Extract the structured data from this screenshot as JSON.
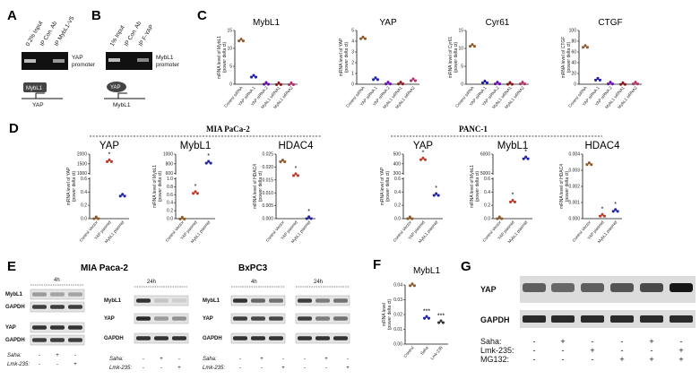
{
  "panels": {
    "A": {
      "letter": "A",
      "lanes": [
        "0.2% Input",
        "IP Con. Ab",
        "IP MybL1-V5"
      ],
      "band_label": "YAP promoter",
      "schematic_box": "MybL1",
      "schematic_gene": "YAP"
    },
    "B": {
      "letter": "B",
      "lanes": [
        "1% Input",
        "IP Con. Ab",
        "IP F-YAP"
      ],
      "band_label": "MybL1 promoter",
      "schematic_box": "YAP",
      "schematic_gene": "MybL1"
    },
    "C": {
      "letter": "C"
    },
    "D": {
      "letter": "D",
      "group_left": "MIA PaCa-2",
      "group_right": "PANC-1"
    },
    "E": {
      "letter": "E",
      "mia_title": "MIA Paca-2",
      "bx_title": "BxPC3",
      "time_4h": "4h",
      "time_24h": "24h",
      "rows_left4": [
        "MybL1",
        "GAPDH",
        "YAP",
        "GAPDH"
      ],
      "rows_left24": [
        "MybL1",
        "YAP",
        "GAPDH"
      ],
      "rows_bx": [
        "MybL1",
        "YAP",
        "GAPDH"
      ],
      "cond_saha": "Saha:",
      "cond_lmk": "Lmk-235:",
      "saha_vals": [
        "-",
        "+",
        "-"
      ],
      "lmk_vals": [
        "-",
        "-",
        "+"
      ]
    },
    "F": {
      "letter": "F"
    },
    "G": {
      "letter": "G",
      "rows": [
        "YAP",
        "GAPDH"
      ],
      "cond_labels": [
        "Saha:",
        "Lmk-235:",
        "MG132:"
      ],
      "saha": [
        "-",
        "+",
        "-",
        "-",
        "+",
        "-"
      ],
      "lmk": [
        "-",
        "-",
        "+",
        "-",
        "-",
        "+"
      ],
      "mg132": [
        "-",
        "-",
        "-",
        "+",
        "+",
        "+"
      ]
    }
  },
  "chart_data": [
    {
      "id": "C-MybL1",
      "type": "scatter",
      "title": "MybL1",
      "ylabel": "mRNA level of MybL1 (power delta ct)",
      "ylim": [
        0,
        15
      ],
      "yticks": [
        0,
        5,
        10,
        15
      ],
      "categories": [
        "Control siRNA",
        "YAP siRNA 1",
        "YAP siRNA 2",
        "MybL1 siRNA1",
        "MybL1 siRNA2"
      ],
      "values": [
        12.3,
        2.2,
        0.2,
        0.1,
        0.1
      ],
      "colors": [
        "#8b5a2b",
        "#1f1fa8",
        "#6a0dad",
        "#8b1a1a",
        "#b52f6a"
      ]
    },
    {
      "id": "C-YAP",
      "type": "scatter",
      "title": "YAP",
      "ylabel": "mRNA level of YAP (power delta ct)",
      "ylim": [
        0,
        5
      ],
      "yticks": [
        0,
        1,
        2,
        3,
        4,
        5
      ],
      "categories": [
        "Control siRNA",
        "YAP siRNA 1",
        "YAP siRNA 2",
        "MybL1 siRNA1",
        "MybL1 siRNA2"
      ],
      "values": [
        4.3,
        0.5,
        0.1,
        0.1,
        0.4
      ],
      "colors": [
        "#8b5a2b",
        "#1f1fa8",
        "#6a0dad",
        "#8b1a1a",
        "#b52f6a"
      ]
    },
    {
      "id": "C-Cyr61",
      "type": "scatter",
      "title": "Cyr61",
      "ylabel": "mRNA level of Cyr61 (power delta ct)",
      "ylim": [
        0,
        15
      ],
      "yticks": [
        0,
        5,
        10,
        15
      ],
      "categories": [
        "Control siRNA",
        "YAP siRNA 1",
        "YAP siRNA 2",
        "MybL1 siRNA1",
        "MybL1 siRNA2"
      ],
      "values": [
        10.8,
        0.6,
        0.3,
        0.2,
        0.3
      ],
      "colors": [
        "#8b5a2b",
        "#1f1fa8",
        "#6a0dad",
        "#8b1a1a",
        "#b52f6a"
      ]
    },
    {
      "id": "C-CTGF",
      "type": "scatter",
      "title": "CTGF",
      "ylabel": "mRNA level of CTGF (power delta ct)",
      "ylim": [
        0,
        100
      ],
      "yticks": [
        0,
        20,
        40,
        60,
        80,
        100
      ],
      "categories": [
        "Control siRNA",
        "YAP siRNA 1",
        "YAP siRNA 2",
        "MybL1 siRNA1",
        "MybL1 siRNA2"
      ],
      "values": [
        70,
        9,
        2,
        1,
        2
      ],
      "colors": [
        "#8b5a2b",
        "#1f1fa8",
        "#6a0dad",
        "#8b1a1a",
        "#b52f6a"
      ]
    },
    {
      "id": "D-MIA-YAP",
      "type": "scatter",
      "title": "YAP",
      "ylabel": "mRNA level of YAP (power delta ct)",
      "ytick_labels": [
        "0.0",
        "0.2",
        "0.4",
        "0.6",
        "1000",
        "1500",
        "2000"
      ],
      "categories": [
        "Control Vector",
        "YAP plasmid",
        "MybL1 plasmid"
      ],
      "values": [
        0.01,
        1650,
        0.35
      ],
      "stars": [
        false,
        true,
        false
      ],
      "colors": [
        "#8b5a2b",
        "#c0392b",
        "#1f1fa8"
      ]
    },
    {
      "id": "D-MIA-MybL1",
      "type": "scatter",
      "title": "MybL1",
      "ylabel": "mRNA level of MybL1 (power delta ct)",
      "ytick_labels": [
        "0.0",
        "0.2",
        "0.4",
        "0.6",
        "0.8",
        "1.0",
        "600",
        "800",
        "1000"
      ],
      "categories": [
        "Control Vector",
        "YAP plasmid",
        "MybL1 plasmid"
      ],
      "values": [
        0.01,
        0.65,
        830
      ],
      "stars": [
        false,
        true,
        true
      ],
      "colors": [
        "#8b5a2b",
        "#c0392b",
        "#1f1fa8"
      ]
    },
    {
      "id": "D-MIA-HDAC4",
      "type": "scatter",
      "title": "HDAC4",
      "ylabel": "mRNA level of HDAC4 (power delta ct)",
      "ylim": [
        0,
        0.025
      ],
      "ytick_labels": [
        "0.000",
        "0.005",
        "0.010",
        "0.015",
        "0.020",
        "0.025"
      ],
      "categories": [
        "Control Vector",
        "YAP plasmid",
        "MybL1 plasmid"
      ],
      "values": [
        0.0223,
        0.017,
        0.0003
      ],
      "stars": [
        false,
        true,
        true
      ],
      "colors": [
        "#8b5a2b",
        "#c0392b",
        "#1f1fa8"
      ]
    },
    {
      "id": "D-PANC-YAP",
      "type": "scatter",
      "title": "YAP",
      "ylabel": "mRNA level of YAP (power delta ct)",
      "ytick_labels": [
        "0.0",
        "0.2",
        "0.4",
        "0.6",
        "300",
        "400",
        "500"
      ],
      "categories": [
        "Control Vector",
        "YAP plasmid",
        "MybL1 plasmid"
      ],
      "values": [
        0.01,
        450,
        0.36
      ],
      "stars": [
        false,
        true,
        true
      ],
      "colors": [
        "#8b5a2b",
        "#c0392b",
        "#1f1fa8"
      ]
    },
    {
      "id": "D-PANC-MybL1",
      "type": "scatter",
      "title": "MybL1",
      "ylabel": "mRNA level of MybL1 (power delta ct)",
      "ytick_labels": [
        "0.0",
        "0.2",
        "0.4",
        "0.6",
        "5000",
        "6000"
      ],
      "categories": [
        "Control Vector",
        "YAP plasmid",
        "MybL1 plasmid"
      ],
      "values": [
        0.01,
        0.26,
        5800
      ],
      "stars": [
        false,
        true,
        true
      ],
      "colors": [
        "#8b5a2b",
        "#c0392b",
        "#1f1fa8"
      ]
    },
    {
      "id": "D-PANC-HDAC4",
      "type": "scatter",
      "title": "HDAC4",
      "ylabel": "mRNA level of HDAC4 (power delta ct)",
      "ylim": [
        0,
        0.004
      ],
      "ytick_labels": [
        "0.000",
        "0.001",
        "0.002",
        "0.003",
        "0.004"
      ],
      "categories": [
        "Control Vector",
        "YAP plasmid",
        "MybL1 plasmid"
      ],
      "values": [
        0.0034,
        0.0002,
        0.0005
      ],
      "stars": [
        false,
        true,
        true
      ],
      "colors": [
        "#8b5a2b",
        "#c0392b",
        "#1f1fa8"
      ]
    },
    {
      "id": "F-MybL1",
      "type": "scatter",
      "title": "MybL1",
      "ylabel": "mRNA level (power delta ct)",
      "ylim": [
        0,
        0.04
      ],
      "ytick_labels": [
        "0.00",
        "0.01",
        "0.02",
        "0.03",
        "0.04"
      ],
      "categories": [
        "Control",
        "Saha",
        "Lmk-235"
      ],
      "values": [
        0.042,
        0.018,
        0.015
      ],
      "annotations": [
        "",
        "***",
        "***"
      ],
      "colors": [
        "#8b5a2b",
        "#1f1fa8",
        "#333333"
      ]
    }
  ]
}
